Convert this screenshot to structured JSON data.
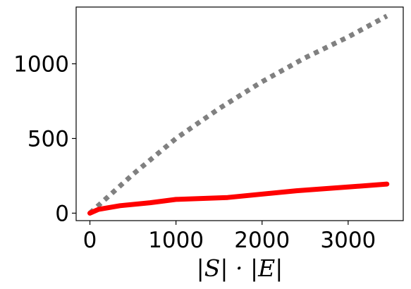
{
  "chart_data": {
    "type": "line",
    "title": "",
    "xlabel": "|S| · |E|",
    "ylabel": "",
    "xlim": [
      -160,
      3640
    ],
    "ylim": [
      -50,
      1380
    ],
    "xticks": [
      0,
      1000,
      2000,
      3000
    ],
    "yticks": [
      0,
      500,
      1000
    ],
    "grid": false,
    "legend": "none",
    "series": [
      {
        "style": "dotted",
        "color": "#808080",
        "x": [
          0,
          500,
          1000,
          1500,
          2000,
          2500,
          3000,
          3450
        ],
        "y": [
          0,
          260,
          500,
          700,
          880,
          1040,
          1180,
          1320
        ]
      },
      {
        "style": "solid",
        "color": "#ff0000",
        "x": [
          0,
          100,
          350,
          700,
          1000,
          1600,
          2400,
          3000,
          3450
        ],
        "y": [
          0,
          25,
          50,
          70,
          92,
          105,
          150,
          175,
          195
        ]
      }
    ]
  }
}
